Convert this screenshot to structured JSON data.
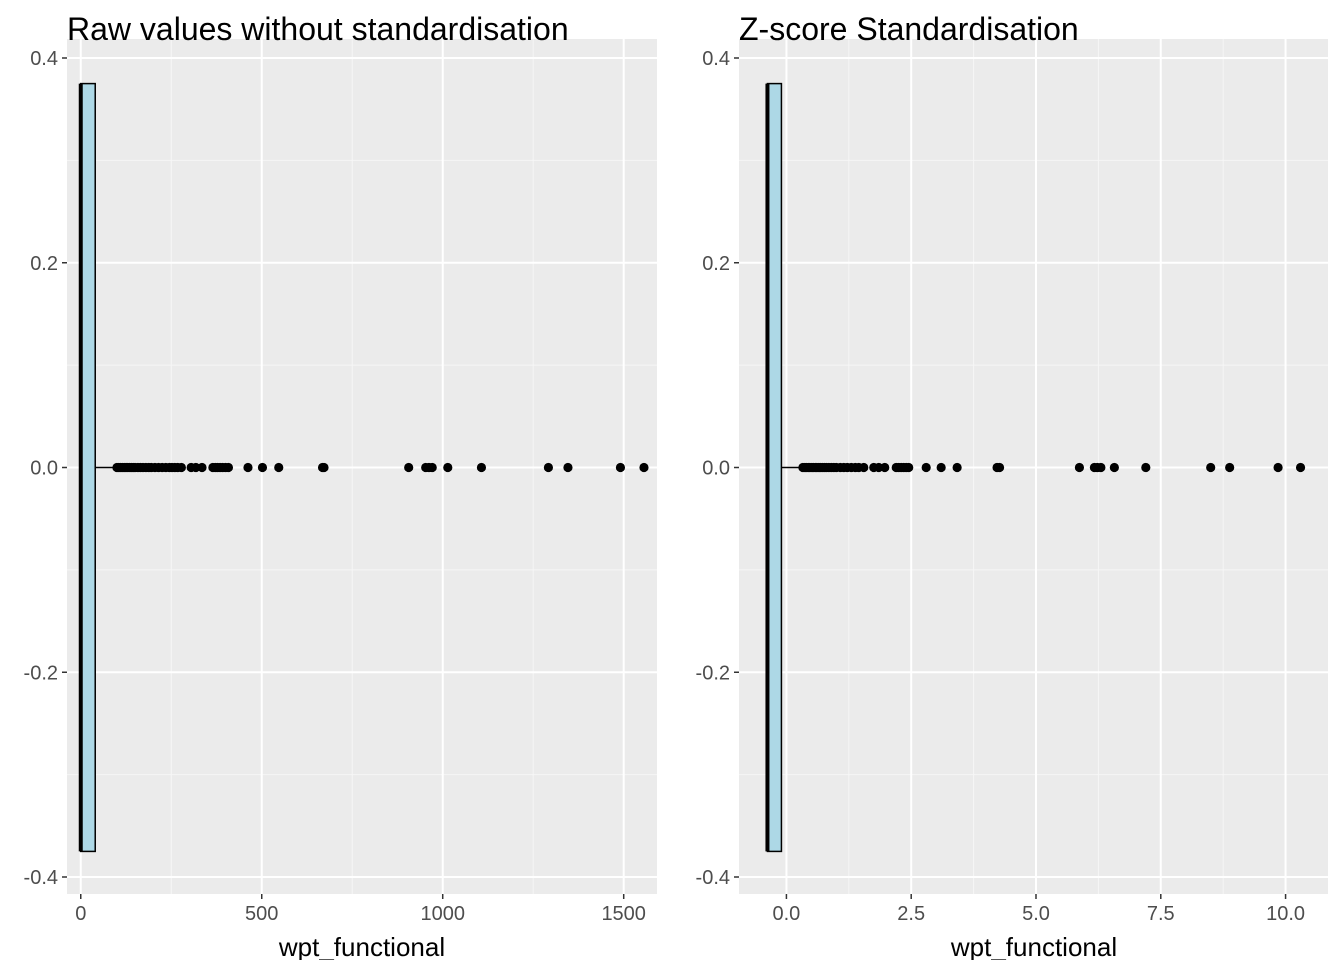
{
  "chart_data": [
    {
      "type": "boxplot",
      "title": "Raw values without standardisation",
      "xlabel": "wpt_functional",
      "ylabel": "",
      "xlim": [
        -38,
        1592
      ],
      "ylim": [
        -0.4,
        0.4
      ],
      "x_ticks": [
        0,
        500,
        1000,
        1500
      ],
      "x_tick_labels": [
        "0",
        "500",
        "1000",
        "1500"
      ],
      "y_ticks": [
        -0.4,
        -0.2,
        0.0,
        0.2,
        0.4
      ],
      "y_tick_labels": [
        "-0.4",
        "-0.2",
        "0.0",
        "0.2",
        "0.4"
      ],
      "grid": true,
      "box": {
        "min": 0,
        "q1": 0,
        "median": 0,
        "q3": 40,
        "whisker_high": 96,
        "y": 0.0,
        "half_width": 0.375,
        "fill": "#add8e6"
      },
      "outliers": [
        100,
        105,
        110,
        115,
        120,
        125,
        130,
        135,
        140,
        145,
        150,
        158,
        165,
        172,
        180,
        188,
        195,
        205,
        215,
        225,
        235,
        245,
        252,
        260,
        268,
        278,
        305,
        318,
        335,
        365,
        372,
        378,
        385,
        392,
        400,
        408,
        462,
        502,
        547,
        668,
        672,
        906,
        953,
        962,
        971,
        1014,
        1107,
        1292,
        1346,
        1491,
        1556
      ]
    },
    {
      "type": "boxplot",
      "title": "Z-score Standardisation",
      "xlabel": "wpt_functional",
      "ylabel": "",
      "xlim": [
        -0.95,
        10.85
      ],
      "ylim": [
        -0.4,
        0.4
      ],
      "x_ticks": [
        0,
        2.5,
        5,
        7.5,
        10
      ],
      "x_tick_labels": [
        "0.0",
        "2.5",
        "5.0",
        "7.5",
        "10.0"
      ],
      "y_ticks": [
        -0.4,
        -0.2,
        0.0,
        0.2,
        0.4
      ],
      "y_tick_labels": [
        "-0.4",
        "-0.2",
        "0.0",
        "0.2",
        "0.4"
      ],
      "grid": true,
      "box": {
        "min": -0.38,
        "q1": -0.38,
        "median": -0.38,
        "q3": -0.1,
        "whisker_high": 0.26,
        "y": 0.0,
        "half_width": 0.375,
        "fill": "#add8e6"
      },
      "outliers": [
        0.33,
        0.37,
        0.4,
        0.44,
        0.47,
        0.51,
        0.54,
        0.58,
        0.61,
        0.65,
        0.68,
        0.72,
        0.76,
        0.8,
        0.85,
        0.9,
        0.95,
        1.0,
        1.08,
        1.15,
        1.22,
        1.3,
        1.38,
        1.45,
        1.55,
        1.75,
        1.85,
        1.97,
        2.2,
        2.25,
        2.3,
        2.35,
        2.4,
        2.45,
        2.8,
        3.1,
        3.42,
        4.22,
        4.27,
        5.87,
        6.17,
        6.23,
        6.3,
        6.57,
        7.2,
        8.5,
        8.88,
        9.85,
        10.3
      ]
    }
  ]
}
